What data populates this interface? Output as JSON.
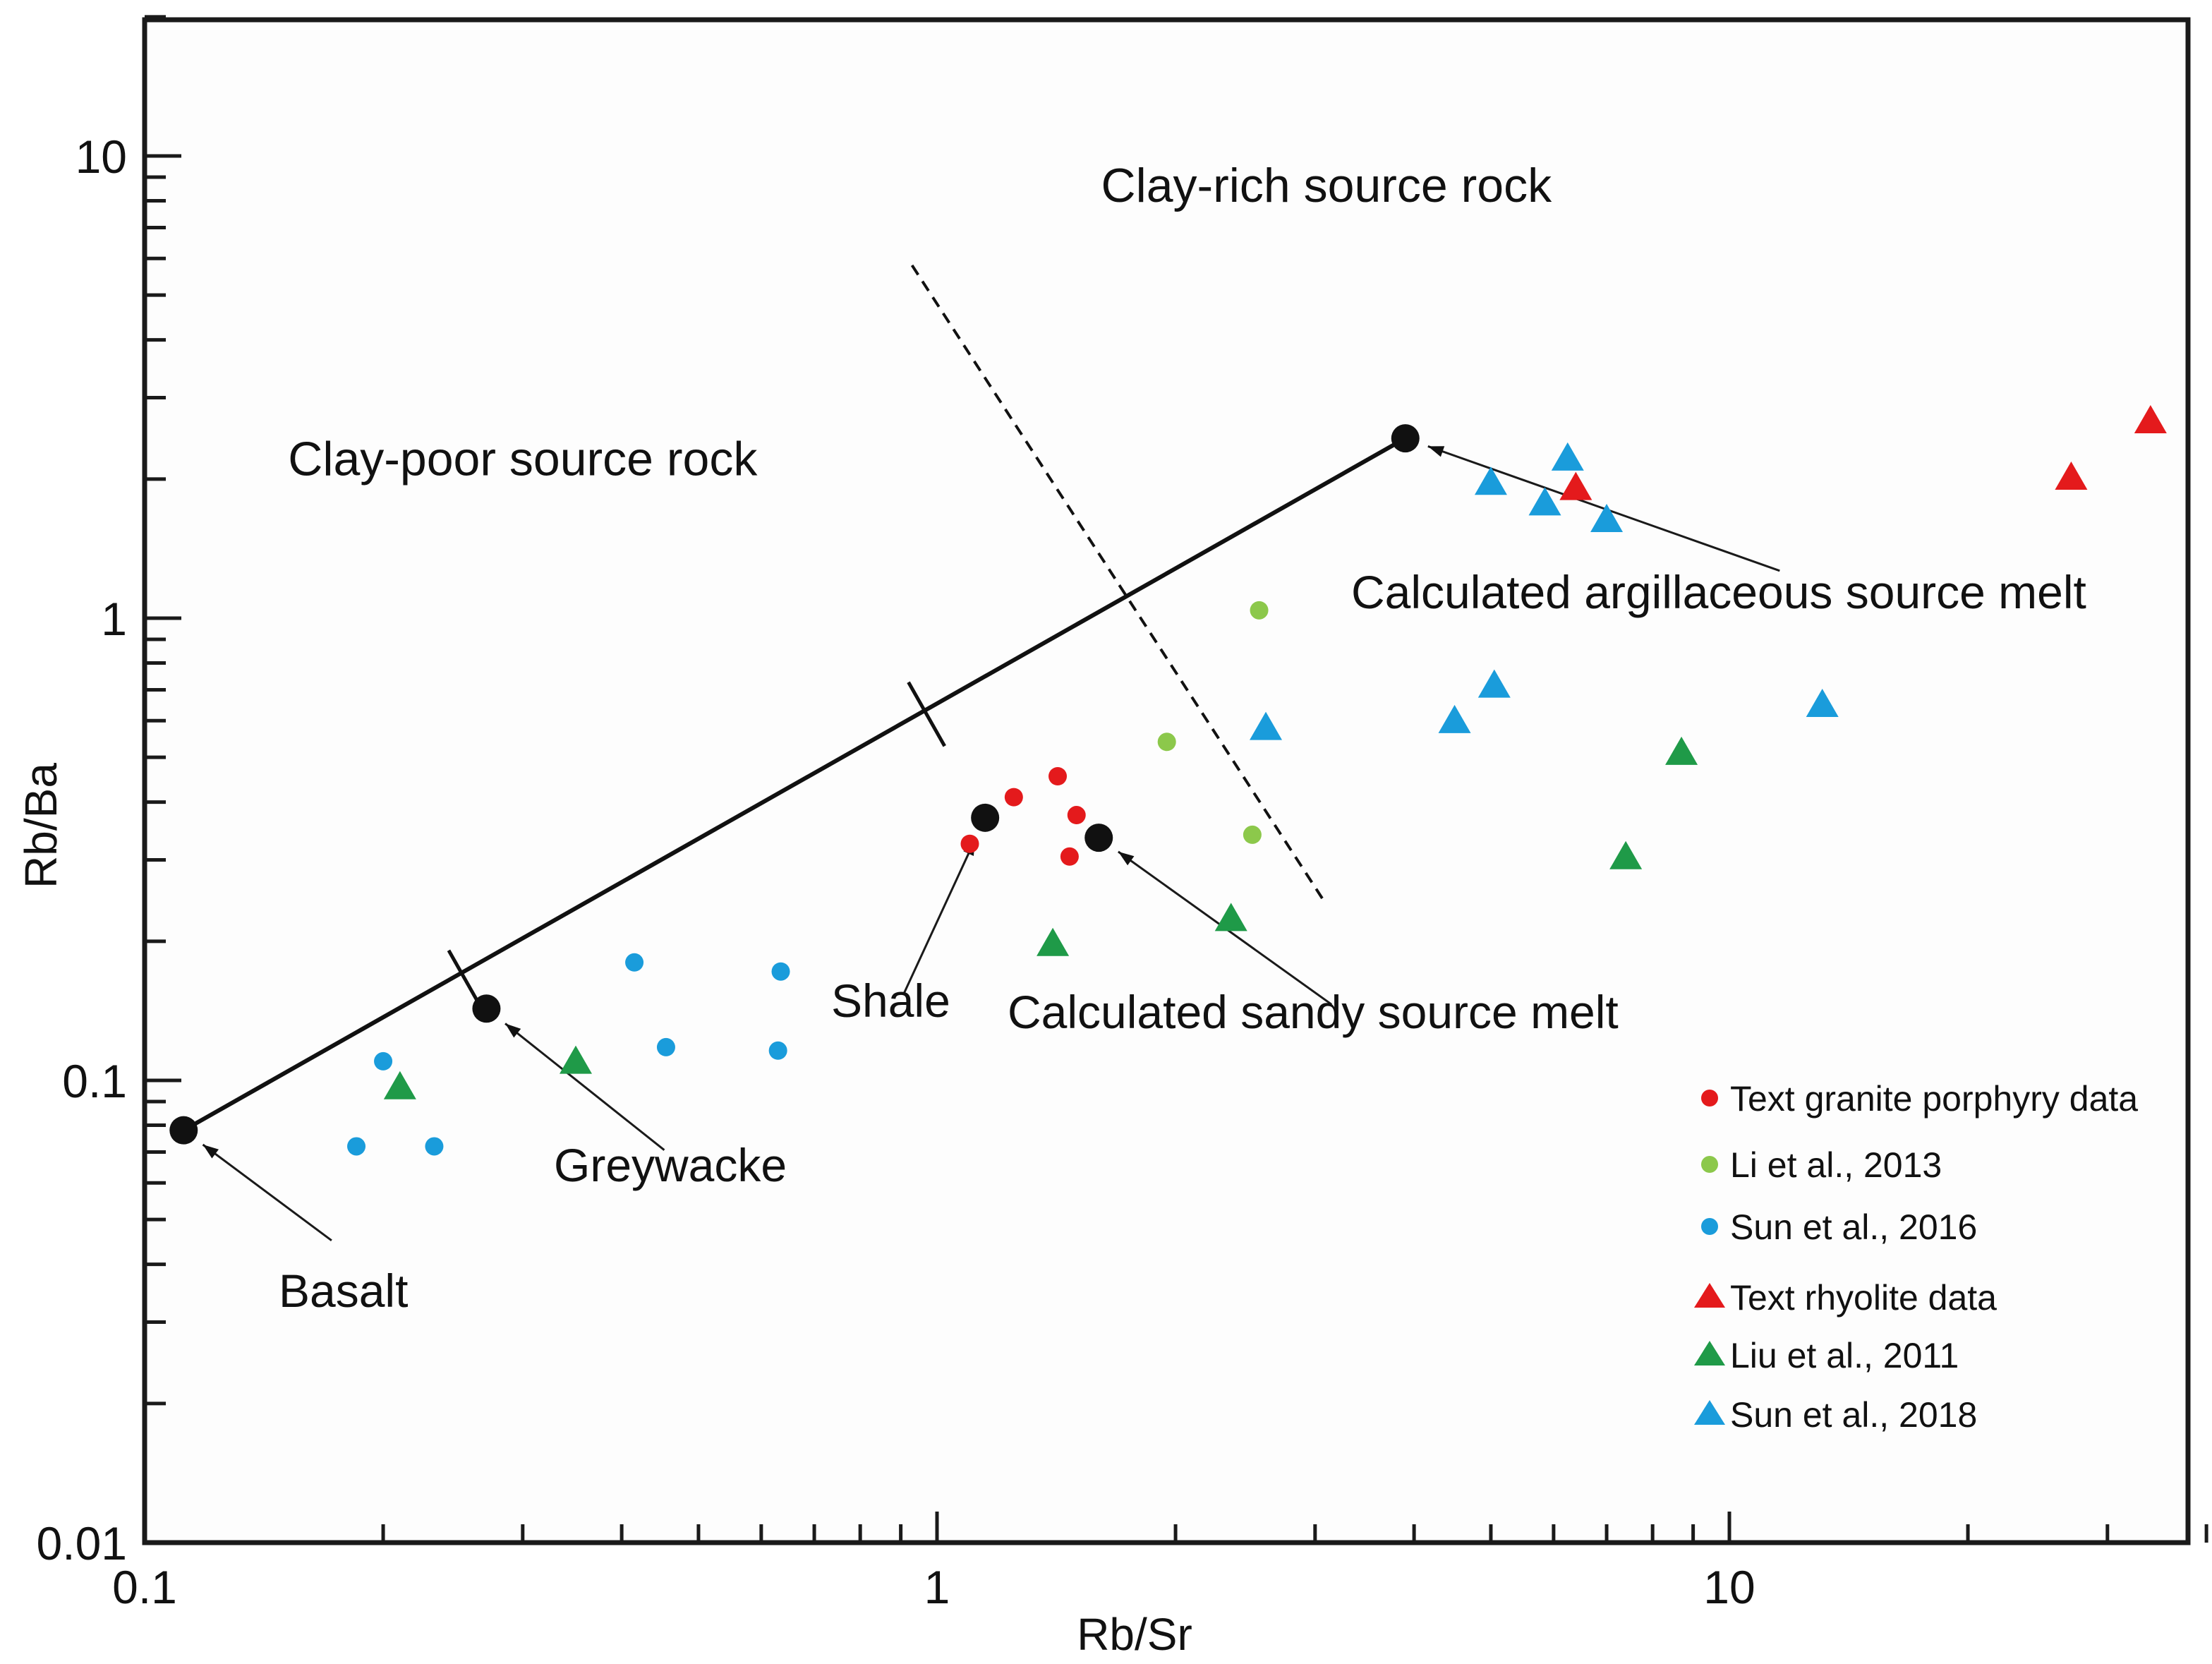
{
  "chart_data": {
    "type": "scatter",
    "xlabel": "Rb/Sr",
    "ylabel": "Rb/Ba",
    "x_scale": "log",
    "y_scale": "log",
    "xlim": [
      0.1,
      50
    ],
    "ylim": [
      0.01,
      20
    ],
    "x_ticks": [
      {
        "value": 0.1,
        "label": "0.1"
      },
      {
        "value": 1,
        "label": "1"
      },
      {
        "value": 10,
        "label": "10"
      }
    ],
    "y_ticks": [
      {
        "value": 0.01,
        "label": "0.01"
      },
      {
        "value": 0.1,
        "label": "0.1"
      },
      {
        "value": 1,
        "label": "1"
      },
      {
        "value": 10,
        "label": "10"
      }
    ],
    "grid": false,
    "legend_position": "bottom-right",
    "region_labels": [
      {
        "text": "Clay-rich source rock",
        "x": 3.1,
        "y": 8.6
      },
      {
        "text": "Clay-poor source rock",
        "x": 0.3,
        "y": 2.2
      }
    ],
    "mixing_line": {
      "points": [
        [
          0.112,
          0.078
        ],
        [
          3.9,
          2.45
        ]
      ],
      "ticks": [
        [
          0.255,
          0.163
        ],
        [
          0.97,
          0.62
        ]
      ]
    },
    "divider_line": {
      "style": "dashed",
      "points": [
        [
          0.93,
          5.8
        ],
        [
          3.1,
          0.24
        ]
      ]
    },
    "end_members": [
      {
        "label": "Basalt",
        "x": 0.112,
        "y": 0.078,
        "label_x": 0.175,
        "label_y": 0.037
      },
      {
        "label": "Greywacke",
        "x": 0.27,
        "y": 0.143,
        "label_x": 0.46,
        "label_y": 0.058
      },
      {
        "label": "Shale",
        "x": 1.15,
        "y": 0.37,
        "label_x": 0.9,
        "label_y": 0.125
      },
      {
        "label": "Calculated sandy source melt",
        "x": 1.6,
        "y": 0.335,
        "label_x": 3.2,
        "label_y": 0.12
      },
      {
        "label": "Calculated argillaceous source melt",
        "x": 3.9,
        "y": 2.45,
        "label_x": 11.8,
        "label_y": 1.05
      }
    ],
    "series": [
      {
        "name": "Text granite porphyry data",
        "marker": "circle",
        "color": "#e41a1c",
        "points": [
          [
            1.1,
            0.325
          ],
          [
            1.25,
            0.41
          ],
          [
            1.42,
            0.455
          ],
          [
            1.5,
            0.375
          ],
          [
            1.47,
            0.305
          ]
        ]
      },
      {
        "name": "Li et al., 2013",
        "marker": "circle",
        "color": "#8cc84b",
        "points": [
          [
            1.95,
            0.54
          ],
          [
            2.55,
            1.04
          ],
          [
            2.5,
            0.34
          ]
        ]
      },
      {
        "name": "Sun et al., 2016",
        "marker": "circle",
        "color": "#1a9cdb",
        "points": [
          [
            0.2,
            0.11
          ],
          [
            0.185,
            0.072
          ],
          [
            0.232,
            0.072
          ],
          [
            0.415,
            0.18
          ],
          [
            0.455,
            0.118
          ],
          [
            0.635,
            0.172
          ],
          [
            0.63,
            0.116
          ]
        ]
      },
      {
        "name": "Text rhyolite data",
        "marker": "triangle",
        "color": "#e41a1c",
        "points": [
          [
            6.4,
            1.9
          ],
          [
            27,
            2.0
          ],
          [
            34,
            2.65
          ]
        ]
      },
      {
        "name": "Liu et al., 2011",
        "marker": "triangle",
        "color": "#1f9a48",
        "points": [
          [
            0.21,
            0.096
          ],
          [
            0.35,
            0.109
          ],
          [
            1.4,
            0.196
          ],
          [
            2.35,
            0.222
          ],
          [
            7.4,
            0.302
          ],
          [
            8.7,
            0.508
          ]
        ]
      },
      {
        "name": "Sun et al., 2018",
        "marker": "triangle",
        "color": "#1a9cdb",
        "points": [
          [
            5.0,
            1.95
          ],
          [
            5.85,
            1.76
          ],
          [
            6.25,
            2.2
          ],
          [
            7.0,
            1.62
          ],
          [
            2.6,
            0.575
          ],
          [
            4.5,
            0.595
          ],
          [
            5.05,
            0.71
          ],
          [
            13.1,
            0.645
          ]
        ]
      }
    ]
  }
}
